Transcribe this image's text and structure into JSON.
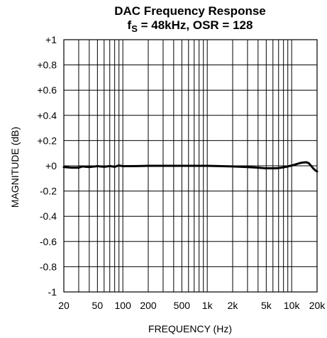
{
  "chart_data": {
    "type": "line",
    "title_line1": "DAC Frequency Response",
    "title_line2_prefix": "f",
    "title_line2_sub": "S",
    "title_line2_rest": " = 48kHz, OSR = 128",
    "xlabel": "FREQUENCY (Hz)",
    "ylabel": "MAGNITUDE (dB)",
    "x_scale": "log",
    "xlim": [
      20,
      20000
    ],
    "ylim": [
      -1,
      1
    ],
    "grid": true,
    "x_ticks": [
      {
        "value": 20,
        "label": "20"
      },
      {
        "value": 50,
        "label": "50"
      },
      {
        "value": 100,
        "label": "100"
      },
      {
        "value": 200,
        "label": "200"
      },
      {
        "value": 500,
        "label": "500"
      },
      {
        "value": 1000,
        "label": "1k"
      },
      {
        "value": 2000,
        "label": "2k"
      },
      {
        "value": 5000,
        "label": "5k"
      },
      {
        "value": 10000,
        "label": "10k"
      },
      {
        "value": 20000,
        "label": "20k"
      }
    ],
    "x_gridlines": [
      20,
      30,
      40,
      50,
      60,
      70,
      80,
      90,
      100,
      200,
      300,
      400,
      500,
      600,
      700,
      800,
      900,
      1000,
      2000,
      3000,
      4000,
      5000,
      6000,
      7000,
      8000,
      9000,
      10000,
      20000
    ],
    "y_ticks": [
      {
        "value": 1,
        "label": "+1"
      },
      {
        "value": 0.8,
        "label": "+0.8"
      },
      {
        "value": 0.6,
        "label": "+0.6"
      },
      {
        "value": 0.4,
        "label": "+0.4"
      },
      {
        "value": 0.2,
        "label": "+0.2"
      },
      {
        "value": 0,
        "label": "+0"
      },
      {
        "value": -0.2,
        "label": "-0.2"
      },
      {
        "value": -0.4,
        "label": "-0.4"
      },
      {
        "value": -0.6,
        "label": "-0.6"
      },
      {
        "value": -0.8,
        "label": "-0.8"
      },
      {
        "value": -1,
        "label": "-1"
      }
    ],
    "series": [
      {
        "color": "#000000",
        "x": [
          20,
          25,
          30,
          33,
          40,
          50,
          60,
          70,
          80,
          90,
          100,
          150,
          200,
          300,
          500,
          700,
          1000,
          2000,
          3000,
          4000,
          5000,
          6000,
          7000,
          8000,
          9000,
          10000,
          11000,
          12000,
          13000,
          14000,
          15000,
          16000,
          17000,
          18000,
          19000,
          20000
        ],
        "y": [
          -0.01,
          -0.015,
          -0.015,
          -0.005,
          -0.01,
          -0.003,
          -0.008,
          -0.002,
          -0.008,
          0.003,
          -0.003,
          -0.002,
          0.0,
          0.0,
          0.0,
          0.0,
          0.0,
          -0.005,
          -0.01,
          -0.015,
          -0.02,
          -0.02,
          -0.018,
          -0.012,
          -0.005,
          0.002,
          0.01,
          0.018,
          0.024,
          0.027,
          0.028,
          0.02,
          0.0,
          -0.02,
          -0.035,
          -0.045
        ]
      }
    ]
  }
}
